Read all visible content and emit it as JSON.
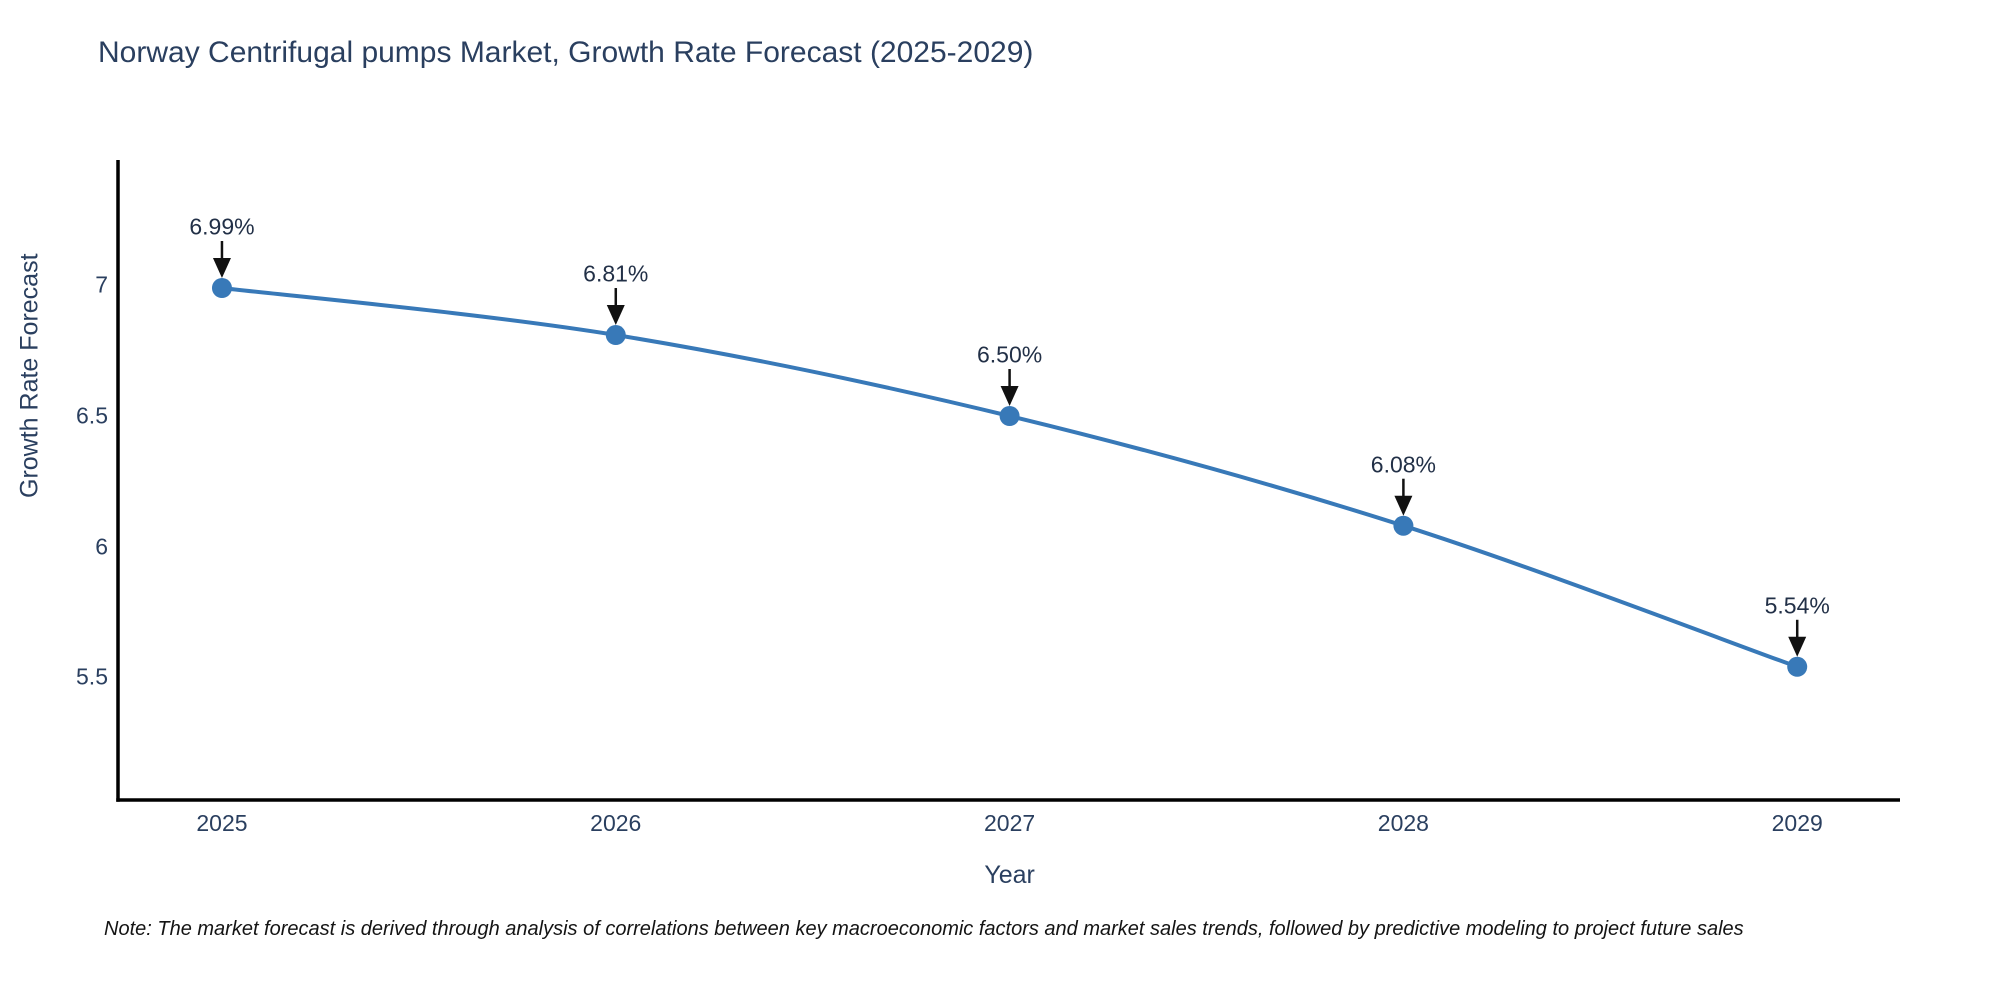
{
  "title": "Norway Centrifugal pumps Market, Growth Rate Forecast (2025-2029)",
  "note": "Note: The market forecast is derived through analysis of correlations between key macroeconomic factors and market sales trends, followed by predictive modeling to project future sales",
  "chart_data": {
    "type": "line",
    "title": "Norway Centrifugal pumps Market, Growth Rate Forecast (2025-2029)",
    "xlabel": "Year",
    "ylabel": "Growth Rate Forecast",
    "x": [
      2025,
      2026,
      2027,
      2028,
      2029
    ],
    "y": [
      6.99,
      6.81,
      6.5,
      6.08,
      5.54
    ],
    "point_labels": [
      "6.99%",
      "6.81%",
      "6.50%",
      "6.08%",
      "5.54%"
    ],
    "xtick_labels": [
      "2025",
      "2026",
      "2027",
      "2028",
      "2029"
    ],
    "yticks": [
      7,
      6.5,
      6,
      5.5
    ],
    "ytick_labels": [
      "7",
      "6.5",
      "6",
      "5.5"
    ],
    "xlim": [
      2024.736,
      2029.261
    ],
    "ylim": [
      5.03,
      7.48
    ],
    "grid": false,
    "legend": false,
    "line_shape": "spline",
    "colors": {
      "line": "#3879b8",
      "marker": "#3879b8",
      "axis": "#000000",
      "text": "#2a3f5f",
      "annotation_text": "#223047",
      "arrow": "#111111",
      "background": "#ffffff"
    }
  }
}
